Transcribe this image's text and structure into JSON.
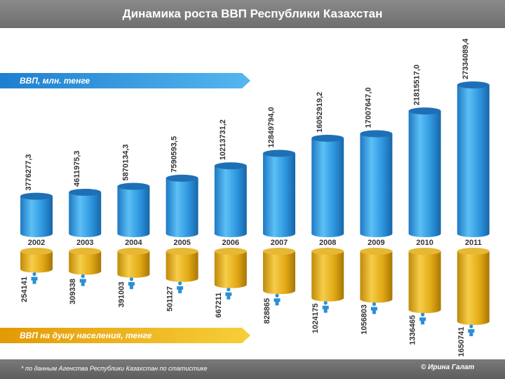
{
  "header": {
    "title": "Динамика роста ВВП Республики Казахстан"
  },
  "footer": {
    "note": "* по данным Агенства Республики Казахстан по статистике",
    "author": "© Ирина Галат"
  },
  "colors": {
    "gdp_cylinder": "#3aa3e6",
    "gdp_cylinder_dark": "#1c6fb2",
    "capita_cylinder": "#e8b21c",
    "capita_cylinder_dark": "#b07f06",
    "person_icon": "#2a8fd6",
    "gdp_band": "#2b8fd8",
    "capita_band": "#e9a90e"
  },
  "icons": {
    "person": "person-icon"
  },
  "chart_data": [
    {
      "type": "bar",
      "title": "ВВП, млн. тенге",
      "categories": [
        "2002",
        "2003",
        "2004",
        "2005",
        "2006",
        "2007",
        "2008",
        "2009",
        "2010",
        "2011"
      ],
      "labels": [
        "3776277,3",
        "4611975,3",
        "5870134,3",
        "7590593,5",
        "10213731,2",
        "12849794,0",
        "16052919,2",
        "17007647,0",
        "21815517,0",
        "27334089,4"
      ],
      "values": [
        3776277.3,
        4611975.3,
        5870134.3,
        7590593.5,
        10213731.2,
        12849794.0,
        16052919.2,
        17007647.0,
        21815517.0,
        27334089.4
      ]
    },
    {
      "type": "bar",
      "title": "ВВП на душу населения, тенге",
      "categories": [
        "2002",
        "2003",
        "2004",
        "2005",
        "2006",
        "2007",
        "2008",
        "2009",
        "2010",
        "2011"
      ],
      "labels": [
        "254141",
        "309338",
        "391003",
        "501127",
        "667211",
        "828865",
        "1024175",
        "1056803",
        "1336465",
        "1650741"
      ],
      "values": [
        254141,
        309338,
        391003,
        501127,
        667211,
        828865,
        1024175,
        1056803,
        1336465,
        1650741
      ]
    }
  ]
}
